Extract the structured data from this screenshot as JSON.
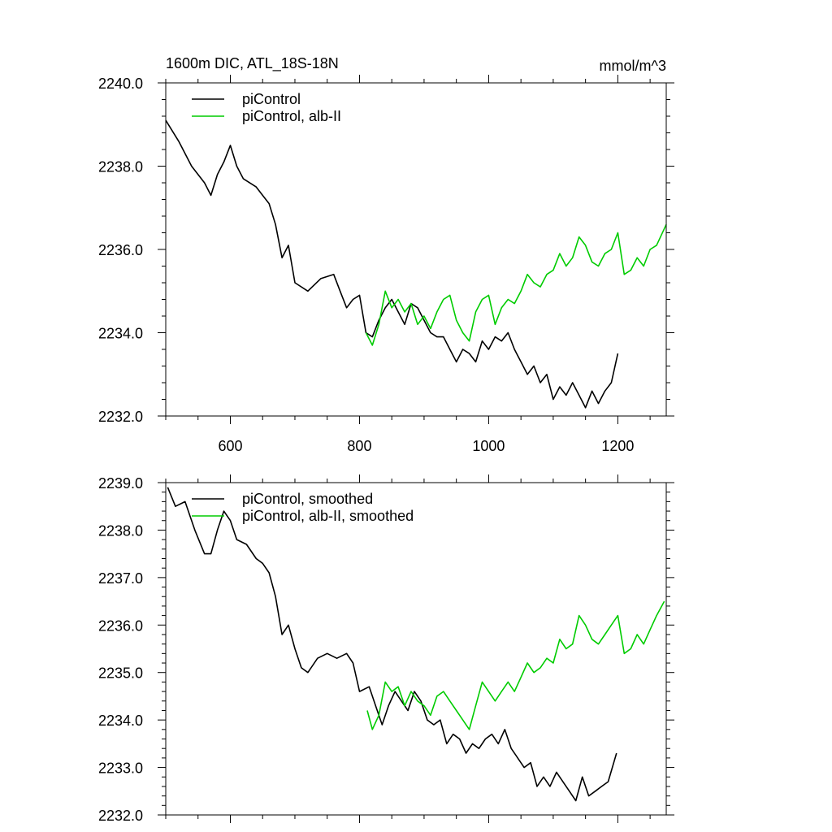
{
  "chart_data": [
    {
      "type": "line",
      "title": "1600m DIC, ATL_18S-18N",
      "units": "mmol/m^3",
      "xlabel": "",
      "ylabel": "",
      "xlim": [
        500,
        1275
      ],
      "ylim": [
        2232.0,
        2240.0
      ],
      "x_ticks": [
        600,
        800,
        1000,
        1200
      ],
      "x_tick_labels": [
        "600",
        "800",
        "1000",
        "1200"
      ],
      "y_ticks": [
        2232.0,
        2234.0,
        2236.0,
        2238.0,
        2240.0
      ],
      "y_tick_labels": [
        "2232.0",
        "2234.0",
        "2236.0",
        "2238.0",
        "2240.0"
      ],
      "legend_position": "top-left",
      "grid": false,
      "series": [
        {
          "name": "piControl",
          "color": "#000000",
          "x": [
            500,
            520,
            540,
            560,
            570,
            580,
            590,
            600,
            610,
            620,
            640,
            650,
            660,
            670,
            680,
            690,
            700,
            720,
            740,
            760,
            770,
            780,
            790,
            800,
            810,
            820,
            830,
            840,
            850,
            860,
            870,
            880,
            890,
            900,
            910,
            920,
            930,
            940,
            950,
            960,
            970,
            980,
            990,
            1000,
            1010,
            1020,
            1030,
            1040,
            1050,
            1060,
            1070,
            1080,
            1090,
            1100,
            1110,
            1120,
            1130,
            1140,
            1150,
            1160,
            1170,
            1180,
            1190,
            1200
          ],
          "y": [
            2239.1,
            2238.6,
            2238.0,
            2237.6,
            2237.3,
            2237.8,
            2238.1,
            2238.5,
            2238.0,
            2237.7,
            2237.5,
            2237.3,
            2237.1,
            2236.6,
            2235.8,
            2236.1,
            2235.2,
            2235.0,
            2235.3,
            2235.4,
            2235.0,
            2234.6,
            2234.8,
            2234.9,
            2234.0,
            2233.9,
            2234.3,
            2234.6,
            2234.8,
            2234.5,
            2234.2,
            2234.7,
            2234.6,
            2234.3,
            2234.0,
            2233.9,
            2233.9,
            2233.6,
            2233.3,
            2233.6,
            2233.5,
            2233.3,
            2233.8,
            2233.6,
            2233.9,
            2233.8,
            2234.0,
            2233.6,
            2233.3,
            2233.0,
            2233.2,
            2232.8,
            2233.0,
            2232.4,
            2232.7,
            2232.5,
            2232.8,
            2232.5,
            2232.2,
            2232.6,
            2232.3,
            2232.6,
            2232.8,
            2233.5
          ]
        },
        {
          "name": "piControl, alb-II",
          "color": "#00cc00",
          "x": [
            810,
            820,
            830,
            840,
            850,
            860,
            870,
            880,
            890,
            900,
            910,
            920,
            930,
            940,
            950,
            960,
            970,
            980,
            990,
            1000,
            1010,
            1020,
            1030,
            1040,
            1050,
            1060,
            1070,
            1080,
            1090,
            1100,
            1110,
            1120,
            1130,
            1140,
            1150,
            1160,
            1170,
            1180,
            1190,
            1200,
            1210,
            1220,
            1230,
            1240,
            1250,
            1260,
            1275
          ],
          "y": [
            2234.0,
            2233.7,
            2234.2,
            2235.0,
            2234.6,
            2234.8,
            2234.5,
            2234.7,
            2234.2,
            2234.4,
            2234.1,
            2234.5,
            2234.8,
            2234.9,
            2234.3,
            2234.0,
            2233.8,
            2234.5,
            2234.8,
            2234.9,
            2234.2,
            2234.6,
            2234.8,
            2234.7,
            2235.0,
            2235.4,
            2235.2,
            2235.1,
            2235.4,
            2235.5,
            2235.9,
            2235.6,
            2235.8,
            2236.3,
            2236.1,
            2235.7,
            2235.6,
            2235.9,
            2236.0,
            2236.4,
            2235.4,
            2235.5,
            2235.8,
            2235.6,
            2236.0,
            2236.1,
            2236.6
          ]
        }
      ]
    },
    {
      "type": "line",
      "title": "",
      "xlabel": "",
      "ylabel": "",
      "xlim": [
        500,
        1275
      ],
      "ylim": [
        2232.0,
        2239.0
      ],
      "x_ticks": [
        600,
        800,
        1000,
        1200
      ],
      "y_ticks": [
        2232.0,
        2233.0,
        2234.0,
        2235.0,
        2236.0,
        2237.0,
        2238.0,
        2239.0
      ],
      "y_tick_labels": [
        "2232.0",
        "2233.0",
        "2234.0",
        "2235.0",
        "2236.0",
        "2237.0",
        "2238.0",
        "2239.0"
      ],
      "legend_position": "top-left",
      "grid": false,
      "series": [
        {
          "name": "piControl, smoothed",
          "color": "#000000",
          "x": [
            503,
            515,
            530,
            545,
            560,
            570,
            580,
            590,
            600,
            610,
            625,
            640,
            650,
            660,
            670,
            680,
            690,
            700,
            710,
            720,
            735,
            750,
            765,
            780,
            790,
            800,
            815,
            825,
            835,
            845,
            855,
            865,
            875,
            885,
            895,
            905,
            915,
            925,
            935,
            945,
            955,
            965,
            975,
            985,
            995,
            1005,
            1015,
            1025,
            1035,
            1045,
            1055,
            1065,
            1075,
            1085,
            1095,
            1105,
            1115,
            1125,
            1135,
            1145,
            1155,
            1165,
            1175,
            1185,
            1198
          ],
          "y": [
            2238.9,
            2238.5,
            2238.6,
            2238.0,
            2237.5,
            2237.5,
            2238.0,
            2238.4,
            2238.2,
            2237.8,
            2237.7,
            2237.4,
            2237.3,
            2237.1,
            2236.6,
            2235.8,
            2236.0,
            2235.5,
            2235.1,
            2235.0,
            2235.3,
            2235.4,
            2235.3,
            2235.4,
            2235.2,
            2234.6,
            2234.7,
            2234.3,
            2233.9,
            2234.3,
            2234.6,
            2234.4,
            2234.2,
            2234.6,
            2234.4,
            2234.0,
            2233.9,
            2234.0,
            2233.5,
            2233.7,
            2233.6,
            2233.3,
            2233.5,
            2233.4,
            2233.6,
            2233.7,
            2233.5,
            2233.8,
            2233.4,
            2233.2,
            2233.0,
            2233.1,
            2232.6,
            2232.8,
            2232.6,
            2232.9,
            2232.7,
            2232.5,
            2232.3,
            2232.8,
            2232.4,
            2232.5,
            2232.6,
            2232.7,
            2233.3
          ]
        },
        {
          "name": "piControl, alb-II, smoothed",
          "color": "#00cc00",
          "x": [
            812,
            820,
            830,
            840,
            850,
            860,
            870,
            880,
            890,
            900,
            910,
            920,
            930,
            940,
            950,
            960,
            970,
            980,
            990,
            1000,
            1010,
            1020,
            1030,
            1040,
            1050,
            1060,
            1070,
            1080,
            1090,
            1100,
            1110,
            1120,
            1130,
            1140,
            1150,
            1160,
            1170,
            1180,
            1190,
            1200,
            1210,
            1220,
            1230,
            1240,
            1250,
            1260,
            1272
          ],
          "y": [
            2234.2,
            2233.8,
            2234.1,
            2234.8,
            2234.6,
            2234.7,
            2234.3,
            2234.6,
            2234.4,
            2234.3,
            2234.1,
            2234.5,
            2234.6,
            2234.4,
            2234.2,
            2234.0,
            2233.8,
            2234.3,
            2234.8,
            2234.6,
            2234.4,
            2234.6,
            2234.8,
            2234.6,
            2234.9,
            2235.2,
            2235.0,
            2235.1,
            2235.3,
            2235.2,
            2235.7,
            2235.5,
            2235.6,
            2236.2,
            2236.0,
            2235.7,
            2235.6,
            2235.8,
            2236.0,
            2236.2,
            2235.4,
            2235.5,
            2235.8,
            2235.6,
            2235.9,
            2236.2,
            2236.5
          ]
        }
      ]
    }
  ]
}
